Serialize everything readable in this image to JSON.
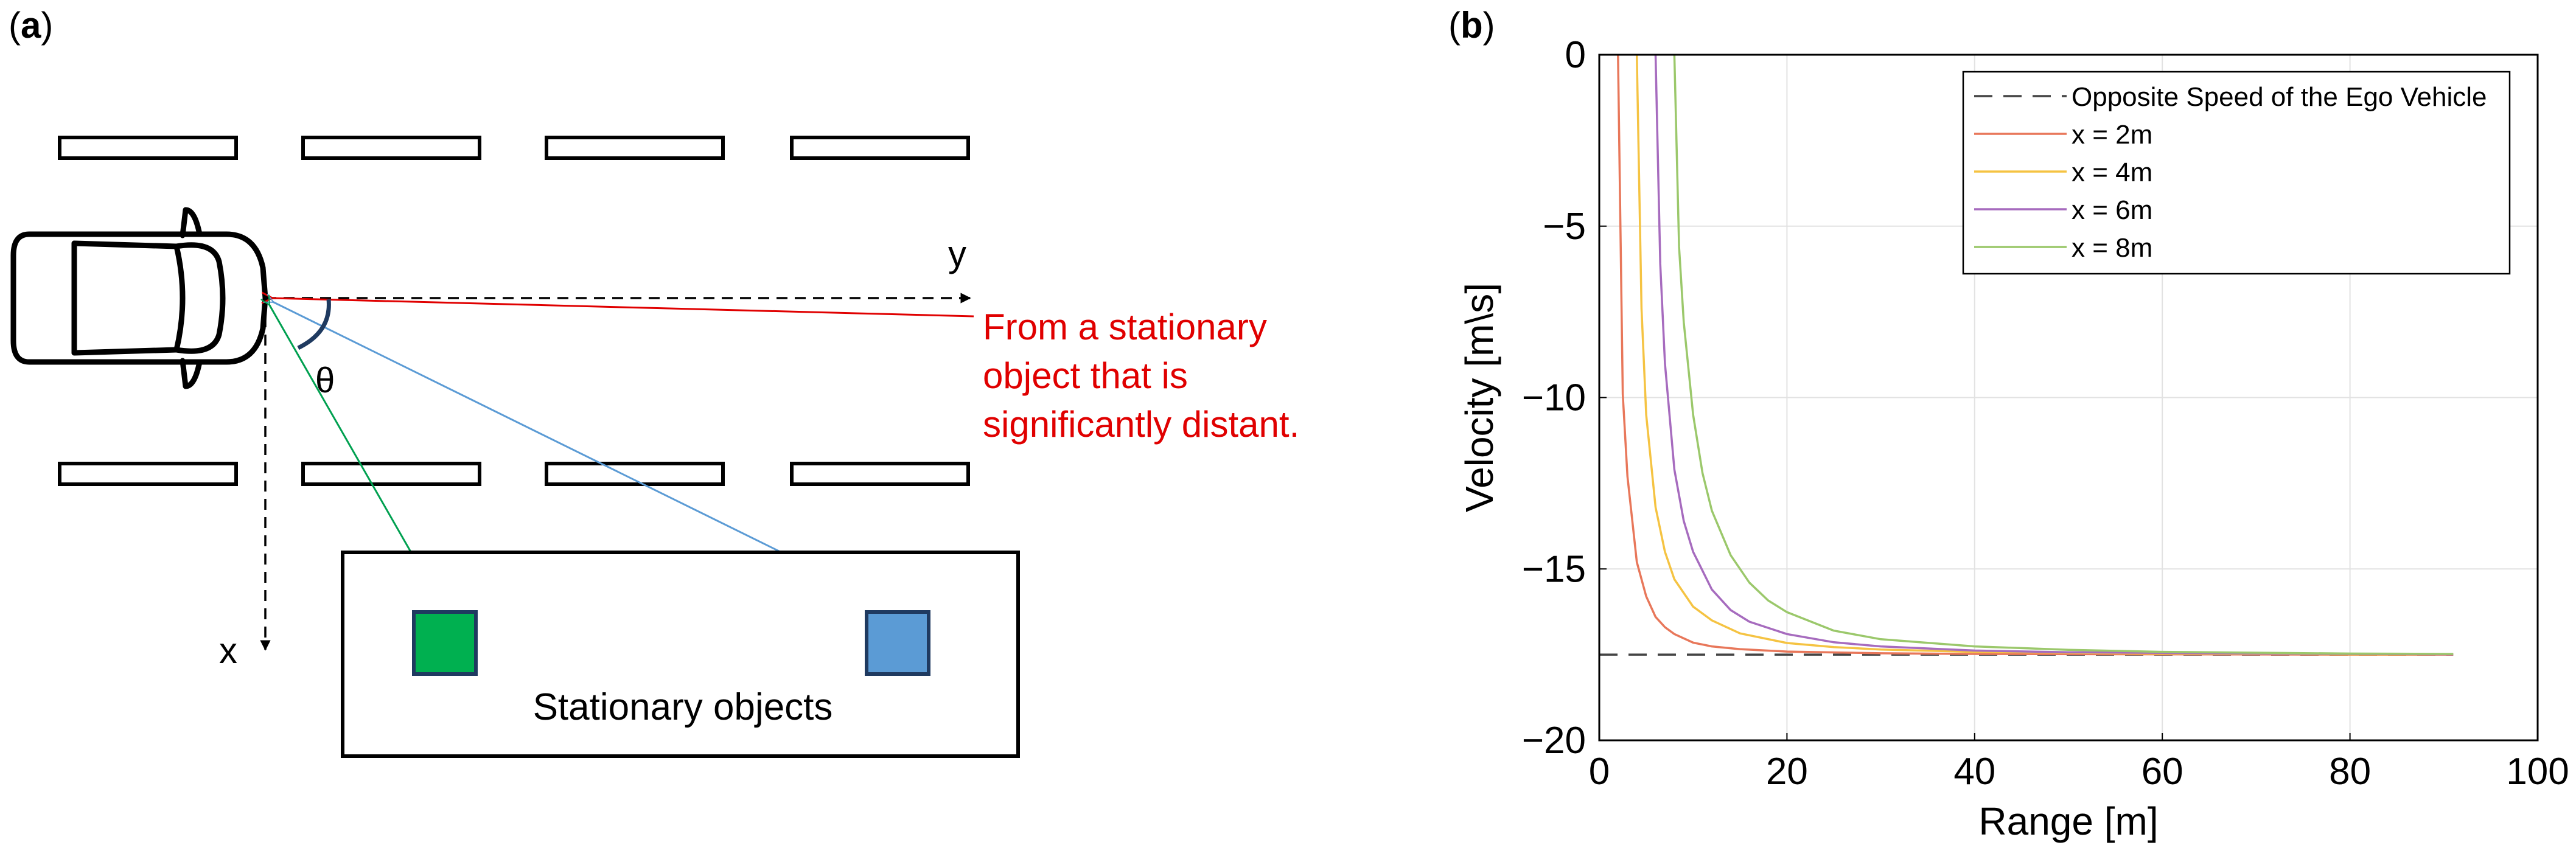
{
  "panel_a": {
    "label_prefix": "(",
    "label_letter": "a",
    "label_suffix": ")",
    "axis_y_label": "y",
    "axis_x_label": "x",
    "angle_label": "θ",
    "distant_note": [
      "From a stationary",
      "object that is",
      "significantly distant."
    ],
    "stationary_objects_label": "Stationary objects",
    "colors": {
      "red": "#e00000",
      "green_box": "#00b050",
      "blue_box": "#5b9bd5",
      "green_ray": "#00a050",
      "blue_ray": "#5b9bd5",
      "box_border": "#1f3a60",
      "arc": "#1f3a60"
    }
  },
  "panel_b": {
    "label_prefix": "(",
    "label_letter": "b",
    "label_suffix": ")",
    "chart_data": {
      "type": "line",
      "title": "",
      "xlabel": "Range [m]",
      "ylabel": "Velocity [m\\s]",
      "xlim": [
        0,
        100
      ],
      "ylim": [
        -20,
        0
      ],
      "xticks": [
        0,
        20,
        40,
        60,
        80,
        100
      ],
      "yticks": [
        0,
        -5,
        -10,
        -15,
        -20
      ],
      "ytick_labels": [
        "0",
        "−5",
        "−10",
        "−15",
        "−20"
      ],
      "grid": true,
      "legend_position": "top-right",
      "ego_speed": -17.5,
      "series": [
        {
          "name": "Opposite Speed of the Ego Vehicle",
          "style": "dashed",
          "color": "#444444",
          "x": [
            0,
            91
          ],
          "y": [
            -17.5,
            -17.5
          ]
        },
        {
          "name": "x = 2m",
          "style": "solid",
          "color": "#e8775a",
          "lateral_offset": 2,
          "x": [
            2,
            2.5,
            3,
            4,
            5,
            6,
            7,
            8,
            10,
            12,
            15,
            20,
            30,
            40,
            60,
            80,
            91
          ],
          "y": [
            0,
            -9.9,
            -12.3,
            -14.8,
            -15.8,
            -16.4,
            -16.7,
            -16.9,
            -17.15,
            -17.26,
            -17.34,
            -17.41,
            -17.46,
            -17.48,
            -17.49,
            -17.5,
            -17.5
          ]
        },
        {
          "name": "x = 4m",
          "style": "solid",
          "color": "#f5c342",
          "lateral_offset": 4,
          "x": [
            4,
            4.5,
            5,
            6,
            7,
            8,
            10,
            12,
            15,
            20,
            25,
            30,
            40,
            60,
            80,
            91
          ],
          "y": [
            0,
            -7.4,
            -10.5,
            -13.2,
            -14.5,
            -15.3,
            -16.1,
            -16.5,
            -16.88,
            -17.16,
            -17.28,
            -17.35,
            -17.42,
            -17.47,
            -17.49,
            -17.49
          ]
        },
        {
          "name": "x = 6m",
          "style": "solid",
          "color": "#a66bbe",
          "lateral_offset": 6,
          "x": [
            6,
            6.5,
            7,
            8,
            9,
            10,
            12,
            14,
            16,
            20,
            25,
            30,
            40,
            50,
            60,
            80,
            91
          ],
          "y": [
            0,
            -6.1,
            -9.0,
            -12.1,
            -13.6,
            -14.5,
            -15.6,
            -16.2,
            -16.54,
            -16.9,
            -17.14,
            -17.26,
            -17.38,
            -17.43,
            -17.45,
            -17.48,
            -17.49
          ]
        },
        {
          "name": "x = 8m",
          "style": "solid",
          "color": "#9bc86b",
          "lateral_offset": 8,
          "x": [
            8,
            8.5,
            9,
            10,
            11,
            12,
            14,
            16,
            18,
            20,
            25,
            30,
            40,
            50,
            60,
            80,
            91
          ],
          "y": [
            0,
            -5.6,
            -7.8,
            -10.5,
            -12.2,
            -13.3,
            -14.6,
            -15.4,
            -15.92,
            -16.26,
            -16.8,
            -17.05,
            -17.26,
            -17.36,
            -17.42,
            -17.47,
            -17.48
          ]
        }
      ]
    }
  }
}
